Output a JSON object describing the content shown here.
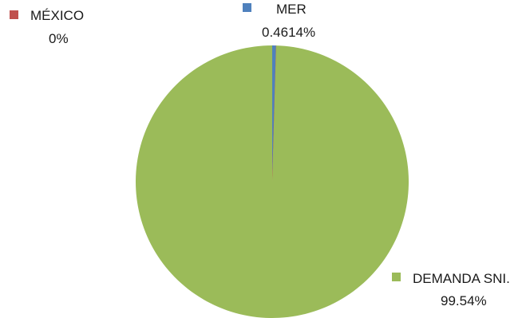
{
  "chart_data": {
    "type": "pie",
    "slices": [
      {
        "name": "MER",
        "value": 0.4614,
        "display": "0.4614%",
        "color": "#4f81bd"
      },
      {
        "name": "MÉXICO",
        "value": 0,
        "display": "0%",
        "color": "#c0504d"
      },
      {
        "name": "DEMANDA SNI.",
        "value": 99.54,
        "display": "99.54%",
        "color": "#9bbb59"
      }
    ],
    "title": "",
    "legend": "labels-with-markers"
  }
}
